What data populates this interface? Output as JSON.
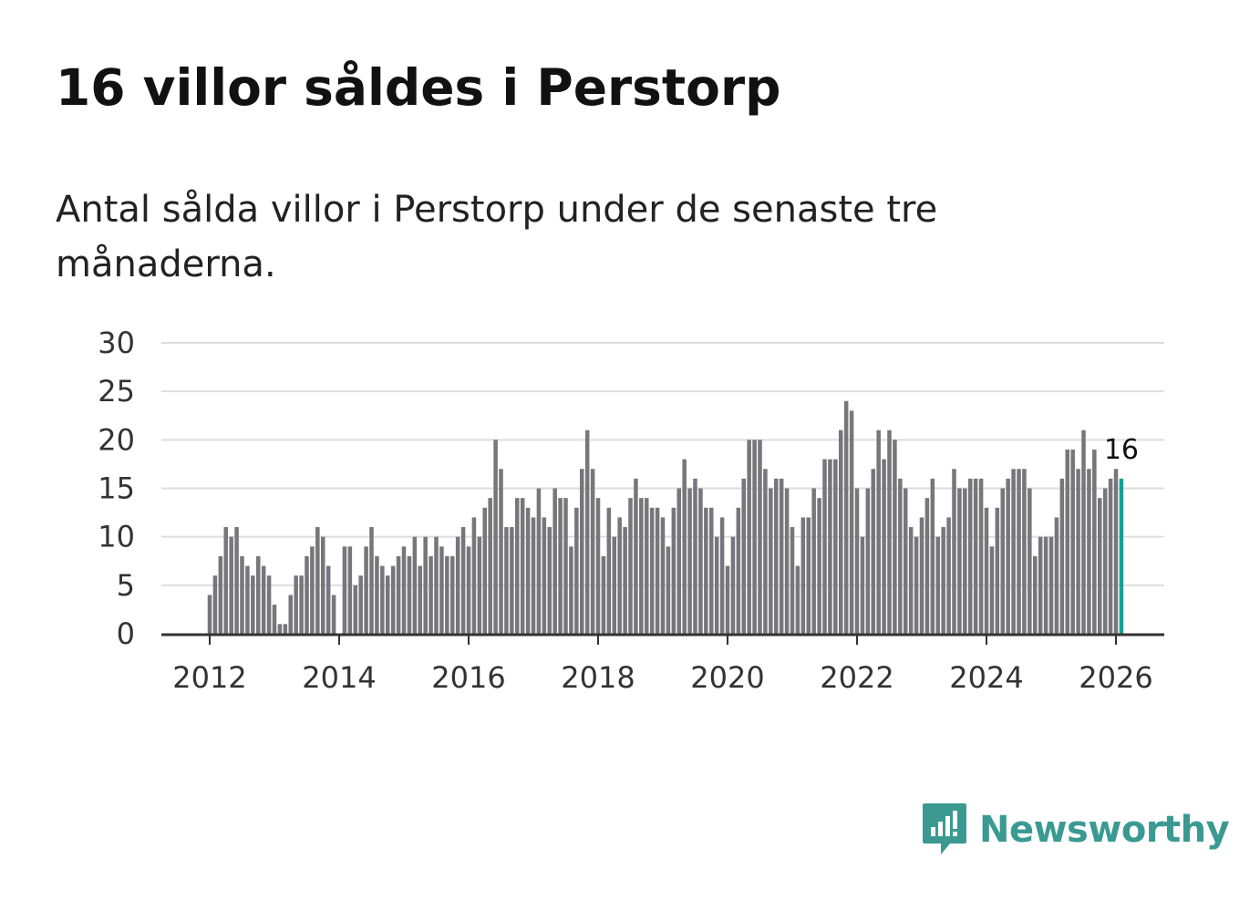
{
  "title": "16 villor såldes i Perstorp",
  "subtitle": "Antal sålda villor i Perstorp under de senaste tre månaderna.",
  "brand": {
    "name": "Newsworthy",
    "color": "#3a9a92",
    "icon": "newsworthy-logo-icon"
  },
  "colors": {
    "bar": "#77767b",
    "highlight": "#1a9e98",
    "grid": "#dddddd",
    "axis": "#333333"
  },
  "chart_data": {
    "type": "bar",
    "title": "16 villor såldes i Perstorp",
    "xlabel": "",
    "ylabel": "",
    "ylim": [
      0,
      30
    ],
    "yticks": [
      "0",
      "5",
      "10",
      "15",
      "20",
      "25",
      "30"
    ],
    "xticks": [
      "2012",
      "2014",
      "2016",
      "2018",
      "2020",
      "2022",
      "2024",
      "2026"
    ],
    "x_start": "2012-01",
    "x_end": "2026-01",
    "grid": true,
    "legend": "none",
    "values": [
      4,
      6,
      8,
      11,
      10,
      11,
      8,
      7,
      6,
      8,
      7,
      6,
      3,
      1,
      1,
      4,
      6,
      6,
      8,
      9,
      11,
      10,
      7,
      4,
      0,
      9,
      9,
      5,
      6,
      9,
      11,
      8,
      7,
      6,
      7,
      8,
      9,
      8,
      10,
      7,
      10,
      8,
      10,
      9,
      8,
      8,
      10,
      11,
      9,
      12,
      10,
      13,
      14,
      20,
      17,
      11,
      11,
      14,
      14,
      13,
      12,
      15,
      12,
      11,
      15,
      14,
      14,
      9,
      13,
      17,
      21,
      17,
      14,
      8,
      13,
      10,
      12,
      11,
      14,
      16,
      14,
      14,
      13,
      13,
      12,
      9,
      13,
      15,
      18,
      15,
      16,
      15,
      13,
      13,
      10,
      12,
      7,
      10,
      13,
      16,
      20,
      20,
      20,
      17,
      15,
      16,
      16,
      15,
      11,
      7,
      12,
      12,
      15,
      14,
      18,
      18,
      18,
      21,
      24,
      23,
      15,
      10,
      15,
      17,
      21,
      18,
      21,
      20,
      16,
      15,
      11,
      10,
      12,
      14,
      16,
      10,
      11,
      12,
      17,
      15,
      15,
      16,
      16,
      16,
      13,
      9,
      13,
      15,
      16,
      17,
      17,
      17,
      15,
      8,
      10,
      10,
      10,
      12,
      16,
      19,
      19,
      17,
      21,
      17,
      19,
      14,
      15,
      16,
      17,
      16
    ],
    "highlight_last": true,
    "annotation": {
      "text": "16",
      "target": "last-bar"
    }
  }
}
